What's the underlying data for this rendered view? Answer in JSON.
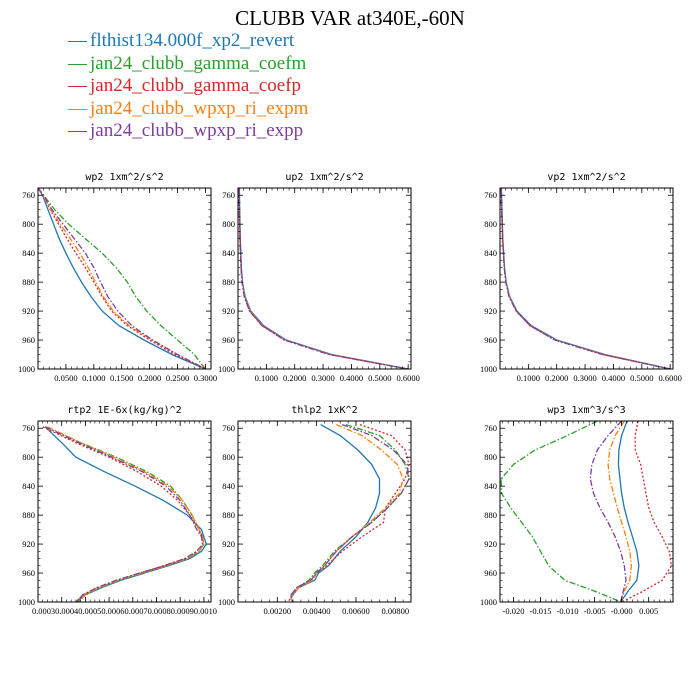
{
  "title": "CLUBB VAR at340E,-60N",
  "legend": [
    {
      "label": "flthist134.000f_xp2_revert",
      "color": "#1f77b4",
      "dash": "solid"
    },
    {
      "label": "jan24_clubb_gamma_coefm",
      "color": "#2ca02c",
      "dash": "dashdot"
    },
    {
      "label": "jan24_clubb_gamma_coefp",
      "color": "#d62728",
      "dash": "dot"
    },
    {
      "label": "jan24_clubb_wpxp_ri_expm",
      "color": "#ff7f0e",
      "dash": "dashdot"
    },
    {
      "label": "jan24_clubb_wpxp_ri_expp",
      "color": "#7b3f9e",
      "dash": "dashdot"
    }
  ],
  "chart_data": [
    {
      "type": "line",
      "title": "wp2  1xm^2/s^2",
      "xlim": [
        0,
        0.31
      ],
      "ylim": [
        1000,
        750
      ],
      "y_reversed": true,
      "xticks": [
        0.05,
        0.1,
        0.15,
        0.2,
        0.25,
        0.3
      ],
      "xtick_labels": [
        "0.0500",
        "0.1000",
        "0.1500",
        "0.2000",
        "0.2500",
        "0.3000"
      ],
      "yticks": [
        760,
        800,
        840,
        880,
        920,
        960,
        1000
      ],
      "ytick_labels": [
        "760",
        "800",
        "840",
        "880",
        "920",
        "960",
        "1000"
      ],
      "y": [
        750,
        760,
        780,
        800,
        820,
        840,
        860,
        880,
        900,
        920,
        940,
        960,
        980,
        1000
      ],
      "series": [
        {
          "x": [
            0.0,
            0.008,
            0.018,
            0.028,
            0.038,
            0.05,
            0.063,
            0.078,
            0.095,
            0.115,
            0.145,
            0.19,
            0.24,
            0.3
          ]
        },
        {
          "x": [
            0.0,
            0.01,
            0.03,
            0.055,
            0.085,
            0.115,
            0.14,
            0.16,
            0.175,
            0.195,
            0.22,
            0.25,
            0.28,
            0.3
          ]
        },
        {
          "x": [
            0.0,
            0.009,
            0.022,
            0.037,
            0.052,
            0.068,
            0.085,
            0.1,
            0.115,
            0.132,
            0.16,
            0.2,
            0.245,
            0.3
          ]
        },
        {
          "x": [
            0.0,
            0.009,
            0.023,
            0.04,
            0.058,
            0.075,
            0.09,
            0.103,
            0.117,
            0.135,
            0.163,
            0.205,
            0.25,
            0.3
          ]
        },
        {
          "x": [
            0.0,
            0.01,
            0.025,
            0.045,
            0.065,
            0.085,
            0.1,
            0.112,
            0.125,
            0.143,
            0.168,
            0.205,
            0.25,
            0.3
          ]
        }
      ]
    },
    {
      "type": "line",
      "title": "up2  1xm^2/s^2",
      "xlim": [
        0,
        0.61
      ],
      "ylim": [
        1000,
        750
      ],
      "y_reversed": true,
      "xticks": [
        0.1,
        0.2,
        0.3,
        0.4,
        0.5,
        0.6
      ],
      "xtick_labels": [
        "0.1000",
        "0.2000",
        "0.3000",
        "0.4000",
        "0.5000",
        "0.6000"
      ],
      "yticks": [
        760,
        800,
        840,
        880,
        920,
        960,
        1000
      ],
      "ytick_labels": [
        "760",
        "800",
        "840",
        "880",
        "920",
        "960",
        "1000"
      ],
      "y": [
        750,
        780,
        820,
        860,
        880,
        900,
        920,
        940,
        960,
        980,
        1000
      ],
      "series": [
        {
          "x": [
            0.005,
            0.006,
            0.008,
            0.012,
            0.016,
            0.025,
            0.045,
            0.09,
            0.17,
            0.33,
            0.6
          ]
        },
        {
          "x": [
            0.004,
            0.005,
            0.007,
            0.011,
            0.015,
            0.023,
            0.042,
            0.086,
            0.165,
            0.325,
            0.6
          ]
        },
        {
          "x": [
            0.004,
            0.005,
            0.007,
            0.011,
            0.015,
            0.022,
            0.041,
            0.084,
            0.163,
            0.32,
            0.6
          ]
        },
        {
          "x": [
            0.004,
            0.005,
            0.007,
            0.011,
            0.015,
            0.023,
            0.043,
            0.087,
            0.166,
            0.325,
            0.6
          ]
        },
        {
          "x": [
            0.004,
            0.005,
            0.007,
            0.011,
            0.014,
            0.022,
            0.041,
            0.085,
            0.164,
            0.322,
            0.6
          ]
        }
      ]
    },
    {
      "type": "line",
      "title": "vp2  1xm^2/s^2",
      "xlim": [
        0,
        0.61
      ],
      "ylim": [
        1000,
        750
      ],
      "y_reversed": true,
      "xticks": [
        0.1,
        0.2,
        0.3,
        0.4,
        0.5,
        0.6
      ],
      "xtick_labels": [
        "0.1000",
        "0.2000",
        "0.3000",
        "0.4000",
        "0.5000",
        "0.6000"
      ],
      "yticks": [
        760,
        800,
        840,
        880,
        920,
        960,
        1000
      ],
      "ytick_labels": [
        "760",
        "800",
        "840",
        "880",
        "920",
        "960",
        "1000"
      ],
      "y": [
        750,
        780,
        820,
        860,
        880,
        900,
        920,
        940,
        960,
        980,
        1000
      ],
      "series": [
        {
          "x": [
            0.005,
            0.007,
            0.01,
            0.016,
            0.022,
            0.034,
            0.06,
            0.11,
            0.2,
            0.37,
            0.6
          ]
        },
        {
          "x": [
            0.004,
            0.006,
            0.009,
            0.015,
            0.021,
            0.032,
            0.058,
            0.107,
            0.195,
            0.365,
            0.6
          ]
        },
        {
          "x": [
            0.004,
            0.006,
            0.009,
            0.015,
            0.021,
            0.032,
            0.057,
            0.105,
            0.193,
            0.36,
            0.6
          ]
        },
        {
          "x": [
            0.004,
            0.006,
            0.009,
            0.015,
            0.021,
            0.033,
            0.058,
            0.107,
            0.196,
            0.365,
            0.6
          ]
        },
        {
          "x": [
            0.004,
            0.006,
            0.009,
            0.015,
            0.02,
            0.032,
            0.057,
            0.106,
            0.194,
            0.362,
            0.6
          ]
        }
      ]
    },
    {
      "type": "line",
      "title": "rtp2  1E-6x(kg/kg)^2",
      "xlim": [
        0.0003,
        0.00103
      ],
      "ylim": [
        1000,
        750
      ],
      "y_reversed": true,
      "xticks": [
        0.0003,
        0.0004,
        0.0005,
        0.0006,
        0.0007,
        0.0008,
        0.0009,
        0.001
      ],
      "xtick_labels": [
        "0.0003",
        "0.0004",
        "0.0005",
        "0.0006",
        "0.0007",
        "0.0008",
        "0.0009",
        "0.0010"
      ],
      "xtick_text": "0.00030.00040.00050.00060.00070.00080.00090.0010",
      "yticks": [
        760,
        800,
        840,
        880,
        920,
        960,
        1000
      ],
      "ytick_labels": [
        "760",
        "800",
        "840",
        "880",
        "920",
        "960",
        "1000"
      ],
      "y": [
        758,
        780,
        800,
        820,
        840,
        860,
        880,
        900,
        910,
        920,
        930,
        940,
        950,
        960,
        970,
        980,
        990,
        1000
      ],
      "series": [
        {
          "x": [
            0.00033,
            0.0004,
            0.00046,
            0.00058,
            0.00071,
            0.00083,
            0.00093,
            0.00099,
            0.001,
            0.00101,
            0.00099,
            0.00094,
            0.00085,
            0.00075,
            0.00065,
            0.00057,
            0.0005,
            0.00046
          ]
        },
        {
          "x": [
            0.00033,
            0.00048,
            0.00063,
            0.00076,
            0.00086,
            0.00091,
            0.00095,
            0.00098,
            0.000995,
            0.001,
            0.00098,
            0.00093,
            0.00084,
            0.00074,
            0.00064,
            0.00056,
            0.0005,
            0.00047
          ]
        },
        {
          "x": [
            0.00032,
            0.00046,
            0.0006,
            0.00072,
            0.00082,
            0.00089,
            0.00094,
            0.00098,
            0.00099,
            0.000995,
            0.00097,
            0.00092,
            0.00083,
            0.00073,
            0.00063,
            0.00055,
            0.00049,
            0.00046
          ]
        },
        {
          "x": [
            0.00034,
            0.00048,
            0.00062,
            0.00075,
            0.00085,
            0.00091,
            0.00095,
            0.00098,
            0.000995,
            0.001,
            0.00098,
            0.00093,
            0.00084,
            0.00074,
            0.00064,
            0.00056,
            0.0005,
            0.00047
          ]
        },
        {
          "x": [
            0.00033,
            0.00047,
            0.00061,
            0.00074,
            0.00084,
            0.0009,
            0.00094,
            0.00097,
            0.00099,
            0.000995,
            0.00097,
            0.00092,
            0.00083,
            0.00073,
            0.00063,
            0.00055,
            0.00049,
            0.00046
          ]
        }
      ]
    },
    {
      "type": "line",
      "title": "thlp2  1xK^2",
      "xlim": [
        0.0,
        0.0088
      ],
      "ylim": [
        1000,
        750
      ],
      "y_reversed": true,
      "xticks": [
        0.002,
        0.004,
        0.006,
        0.008
      ],
      "xtick_labels": [
        "0.00200",
        "0.00400",
        "0.00600",
        "0.00800"
      ],
      "yticks": [
        760,
        800,
        840,
        880,
        920,
        960,
        1000
      ],
      "ytick_labels": [
        "760",
        "800",
        "840",
        "880",
        "920",
        "960",
        "1000"
      ],
      "y": [
        755,
        770,
        790,
        810,
        830,
        850,
        870,
        890,
        910,
        930,
        950,
        960,
        970,
        980,
        990,
        995,
        1000
      ],
      "series": [
        {
          "x": [
            0.0042,
            0.0052,
            0.0061,
            0.0068,
            0.0072,
            0.0072,
            0.007,
            0.0066,
            0.006,
            0.0052,
            0.0046,
            0.0041,
            0.0039,
            0.0031,
            0.0028,
            0.0027,
            0.0028
          ]
        },
        {
          "x": [
            0.0055,
            0.0072,
            0.008,
            0.0085,
            0.0087,
            0.0083,
            0.0076,
            0.0068,
            0.0058,
            0.0049,
            0.0043,
            0.0039,
            0.0036,
            0.003,
            0.0027,
            0.0027,
            0.0028
          ]
        },
        {
          "x": [
            0.0062,
            0.0078,
            0.0085,
            0.0087,
            0.0085,
            0.008,
            0.0075,
            0.0074,
            0.0063,
            0.0053,
            0.0045,
            0.004,
            0.0037,
            0.003,
            0.0027,
            0.0027,
            0.0025
          ]
        },
        {
          "x": [
            0.005,
            0.0063,
            0.0073,
            0.0081,
            0.0084,
            0.0082,
            0.0075,
            0.0067,
            0.0058,
            0.005,
            0.0044,
            0.004,
            0.0038,
            0.0031,
            0.0028,
            0.0027,
            0.0028
          ]
        },
        {
          "x": [
            0.0053,
            0.0068,
            0.0079,
            0.0086,
            0.0087,
            0.0083,
            0.0076,
            0.0068,
            0.0058,
            0.005,
            0.0044,
            0.004,
            0.0037,
            0.003,
            0.0027,
            0.0027,
            0.0028
          ]
        }
      ]
    },
    {
      "type": "line",
      "title": "wp3  1xm^3/s^3",
      "xlim": [
        -0.0225,
        0.0095
      ],
      "ylim": [
        1000,
        750
      ],
      "y_reversed": true,
      "xticks": [
        -0.02,
        -0.015,
        -0.01,
        -0.005,
        0.0,
        0.005
      ],
      "xtick_labels": [
        "-0.020",
        "-0.015",
        "-0.010",
        "-0.005",
        "-0.000",
        "0.005"
      ],
      "yticks": [
        760,
        800,
        840,
        880,
        920,
        960,
        1000
      ],
      "ytick_labels": [
        "760",
        "800",
        "840",
        "880",
        "920",
        "960",
        "1000"
      ],
      "y": [
        750,
        770,
        790,
        810,
        830,
        850,
        870,
        890,
        910,
        930,
        950,
        970,
        985,
        1000
      ],
      "series": [
        {
          "x": [
            0.001,
            0.0,
            -0.0005,
            -0.0006,
            -0.0003,
            0.0,
            0.0005,
            0.0012,
            0.002,
            0.0028,
            0.0032,
            0.0028,
            0.0012,
            -0.0002
          ]
        },
        {
          "x": [
            -0.0045,
            -0.01,
            -0.016,
            -0.02,
            -0.0223,
            -0.0222,
            -0.0205,
            -0.0185,
            -0.0165,
            -0.015,
            -0.0135,
            -0.0105,
            -0.005,
            -0.0001
          ]
        },
        {
          "x": [
            0.003,
            0.0025,
            0.0025,
            0.0035,
            0.004,
            0.0045,
            0.005,
            0.006,
            0.0075,
            0.0088,
            0.0092,
            0.0075,
            0.004,
            0.0
          ]
        },
        {
          "x": [
            0.0005,
            -0.0012,
            -0.0022,
            -0.0025,
            -0.0022,
            -0.0015,
            -0.0008,
            0.0,
            0.0008,
            0.0015,
            0.0018,
            0.0015,
            0.0005,
            -0.0002
          ]
        },
        {
          "x": [
            0.0,
            -0.0025,
            -0.0045,
            -0.0055,
            -0.0058,
            -0.0052,
            -0.004,
            -0.0025,
            -0.0012,
            -0.0002,
            0.0005,
            0.0008,
            0.0003,
            -0.0002
          ]
        }
      ]
    }
  ]
}
